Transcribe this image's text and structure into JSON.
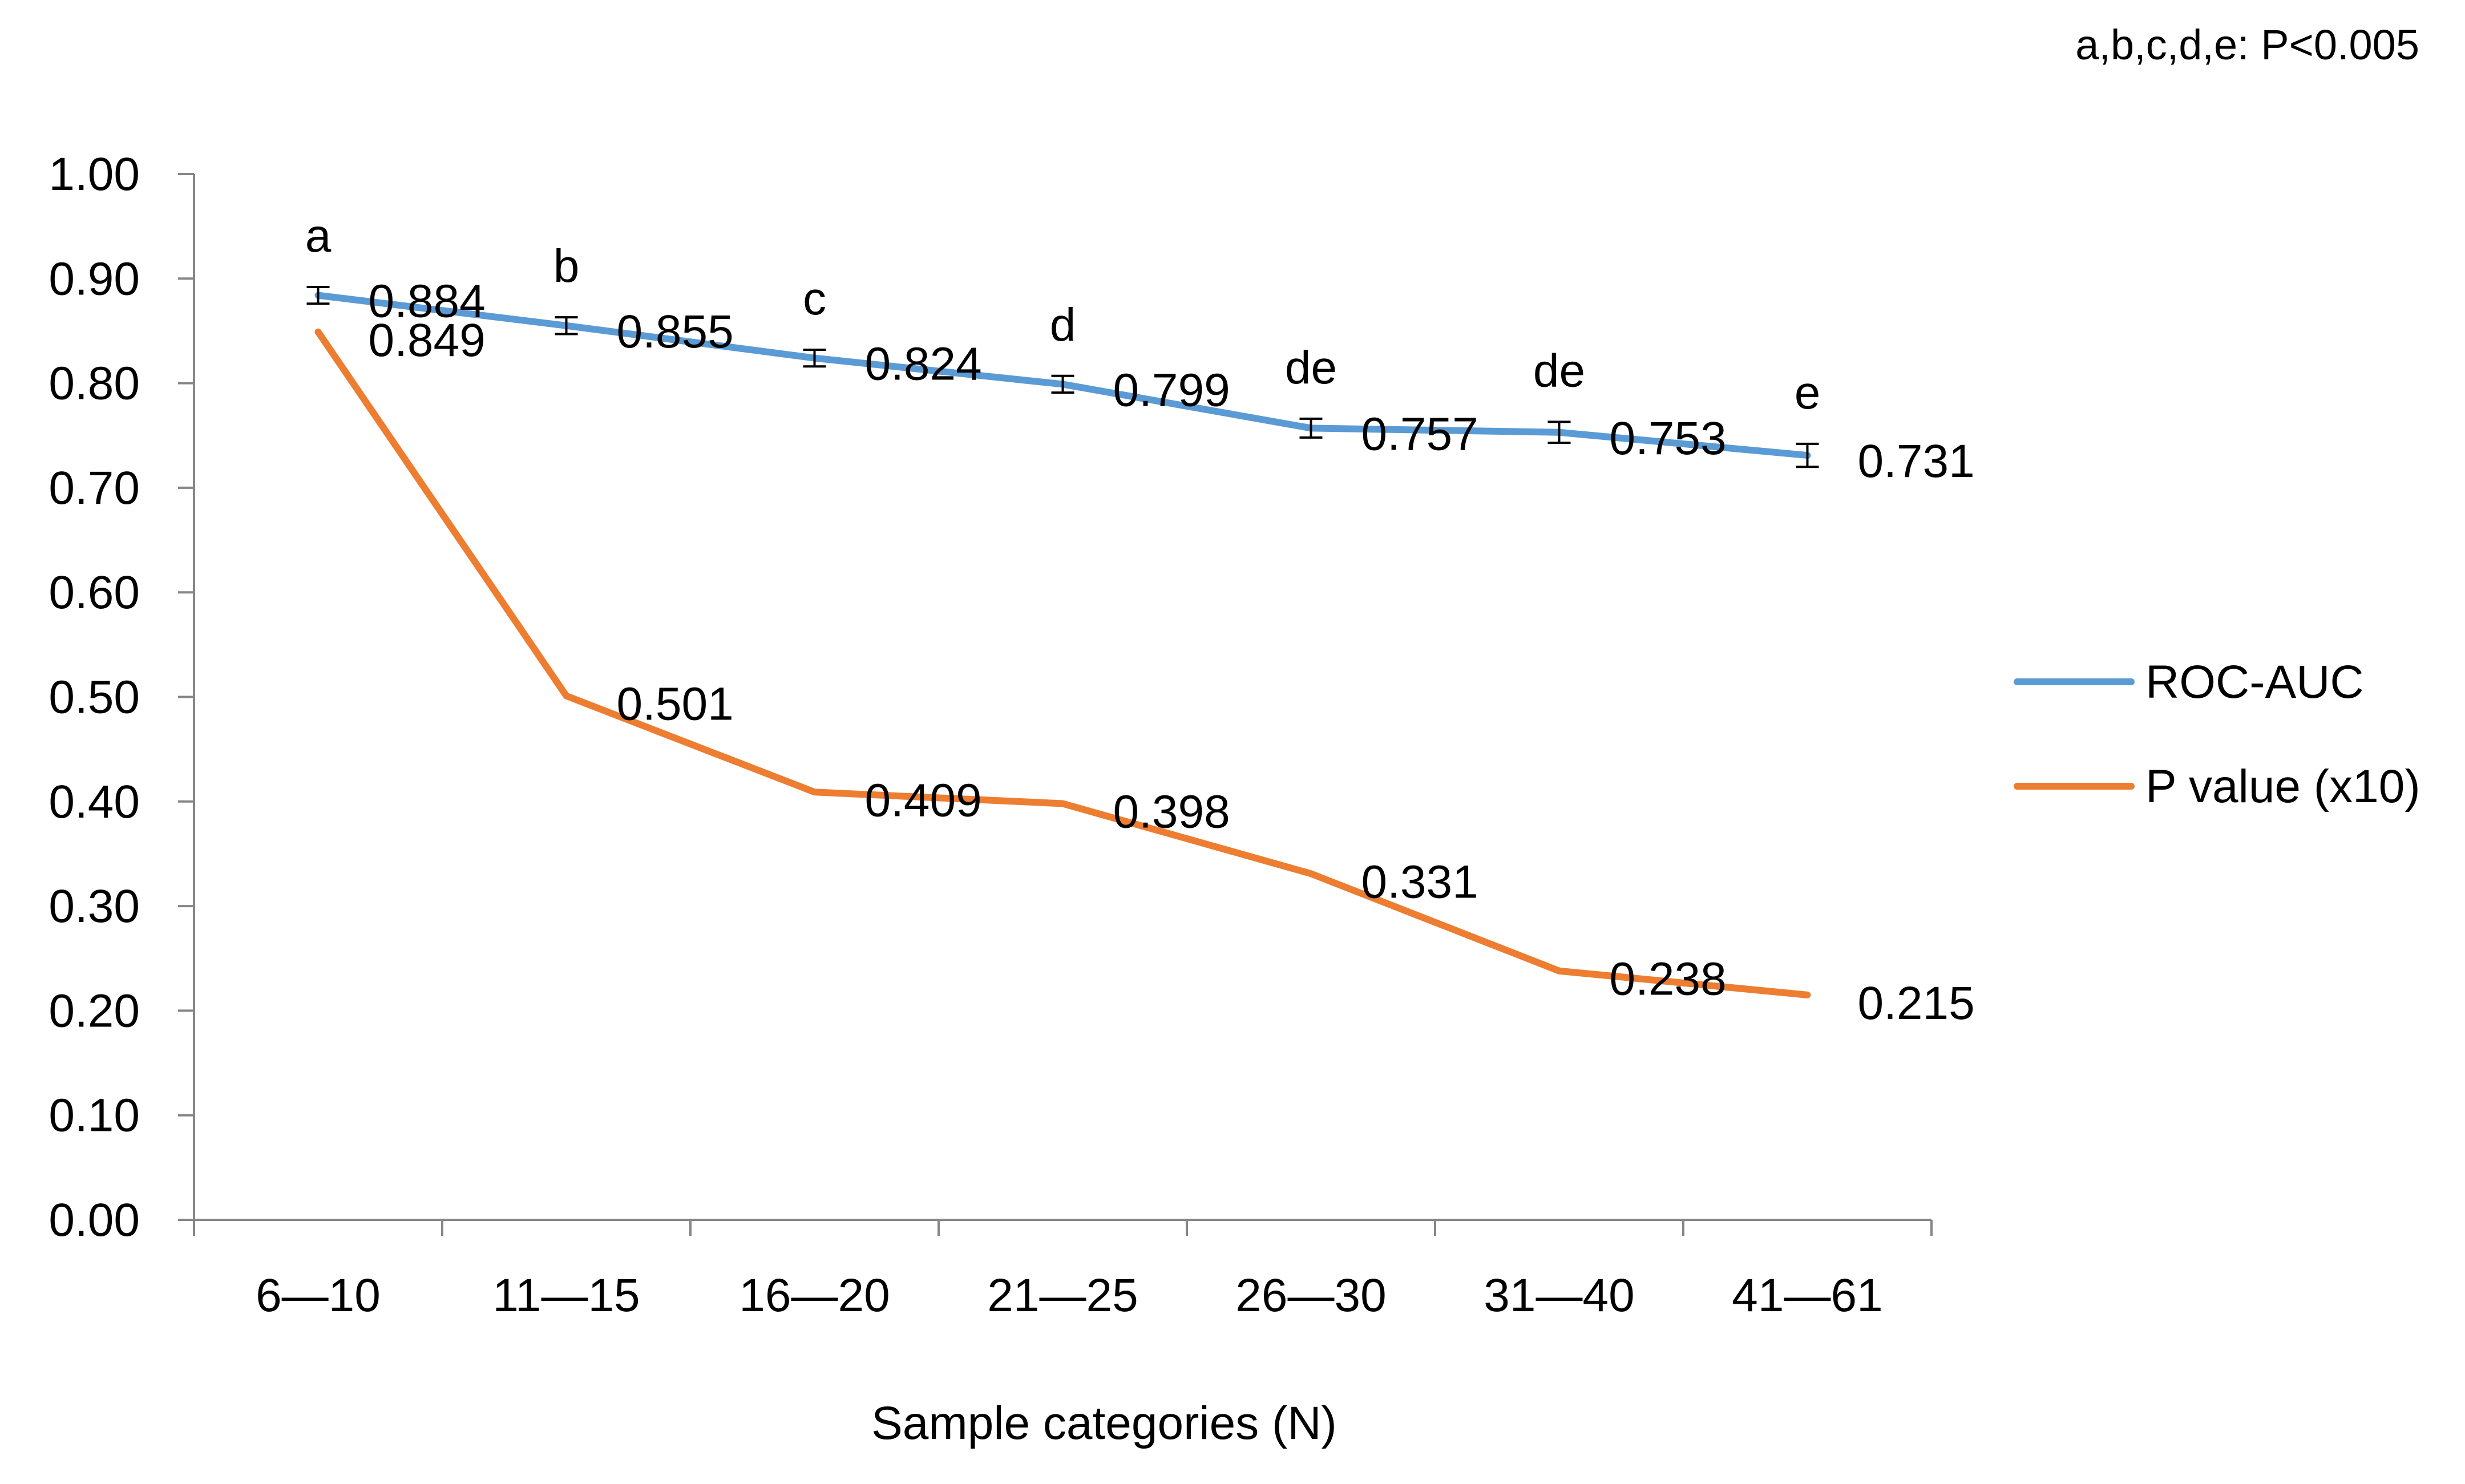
{
  "chart_data": {
    "type": "line",
    "title": "",
    "xlabel": "Sample categories (N)",
    "ylabel": "",
    "categories": [
      "6—10",
      "11—15",
      "16—20",
      "21—25",
      "26—30",
      "31—40",
      "41—61"
    ],
    "ylim": [
      0,
      1
    ],
    "ytick_step": 0.1,
    "ytick_labels": [
      "0.00",
      "0.10",
      "0.20",
      "0.30",
      "0.40",
      "0.50",
      "0.60",
      "0.70",
      "0.80",
      "0.90",
      "1.00"
    ],
    "grid": false,
    "legend_position": "right",
    "series": [
      {
        "name": "ROC-AUC",
        "color": "#5B9BD5",
        "values": [
          0.884,
          0.855,
          0.824,
          0.799,
          0.757,
          0.753,
          0.731
        ],
        "labels": [
          "0.884",
          "0.855",
          "0.824",
          "0.799",
          "0.757",
          "0.753",
          "0.731"
        ],
        "error": [
          0.008,
          0.008,
          0.008,
          0.008,
          0.009,
          0.01,
          0.011
        ],
        "significance": [
          "a",
          "b",
          "c",
          "d",
          "de",
          "de",
          "e"
        ]
      },
      {
        "name": "P value (x10)",
        "color": "#ED7D31",
        "values": [
          0.849,
          0.501,
          0.409,
          0.398,
          0.331,
          0.238,
          0.215
        ],
        "labels": [
          "0.849",
          "0.501",
          "0.409",
          "0.398",
          "0.331",
          "0.238",
          "0.215"
        ]
      }
    ],
    "annotations": [
      {
        "text": "a,b,c,d,e: P<0.005",
        "position": "top-right"
      }
    ]
  }
}
